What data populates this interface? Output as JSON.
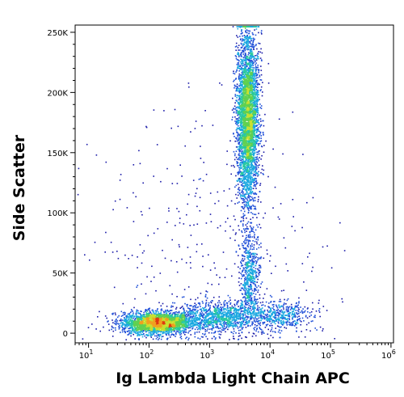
{
  "chart_data": {
    "type": "scatter",
    "style": "density-dot-plot",
    "xlabel": "Ig Lambda Light Chain APC",
    "ylabel": "Side Scatter",
    "xscale": "log",
    "yscale": "linear",
    "xlim": [
      6,
      1100000
    ],
    "ylim": [
      -8000,
      256000
    ],
    "x_ticks": [
      {
        "value": 10,
        "base": "10",
        "exp": "1"
      },
      {
        "value": 100,
        "base": "10",
        "exp": "2"
      },
      {
        "value": 1000,
        "base": "10",
        "exp": "3"
      },
      {
        "value": 10000,
        "base": "10",
        "exp": "4"
      },
      {
        "value": 100000,
        "base": "10",
        "exp": "5"
      },
      {
        "value": 1000000,
        "base": "10",
        "exp": "6"
      }
    ],
    "y_ticks": [
      {
        "value": 0,
        "label": "0"
      },
      {
        "value": 50000,
        "label": "50K"
      },
      {
        "value": 100000,
        "label": "100K"
      },
      {
        "value": 150000,
        "label": "150K"
      },
      {
        "value": 200000,
        "label": "200K"
      },
      {
        "value": 250000,
        "label": "250K"
      }
    ],
    "density_colors": [
      "#1a1aa8",
      "#1f4fd8",
      "#1aa8e0",
      "#28c8a0",
      "#60d050",
      "#c8e030",
      "#f0a020",
      "#e03a10"
    ],
    "populations": [
      {
        "x_center": 130,
        "x_spread_decades": 0.28,
        "y_center": 9000,
        "y_spread": 4500,
        "weight": 0.3
      },
      {
        "x_center": 1500,
        "x_spread_decades": 0.35,
        "y_center": 14000,
        "y_spread": 6000,
        "weight": 0.12
      },
      {
        "x_center": 4200,
        "x_spread_decades": 0.09,
        "y_center": 180000,
        "y_spread": 35000,
        "weight": 0.42
      },
      {
        "x_center": 4500,
        "x_spread_decades": 0.08,
        "y_center": 50000,
        "y_spread": 20000,
        "weight": 0.07
      },
      {
        "x_center": 15000,
        "x_spread_decades": 0.25,
        "y_center": 15000,
        "y_spread": 6000,
        "weight": 0.05
      },
      {
        "x_center": 1000,
        "x_spread_decades": 0.9,
        "y_center": 70000,
        "y_spread": 60000,
        "weight": 0.04
      }
    ]
  }
}
